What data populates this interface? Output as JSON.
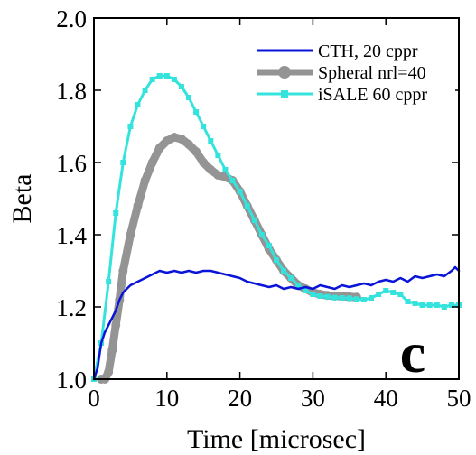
{
  "chart_data": {
    "type": "line",
    "title": "",
    "xlabel": "Time [microsec]",
    "ylabel": "Beta",
    "xlim": [
      0,
      50
    ],
    "ylim": [
      1.0,
      2.0
    ],
    "xticks": [
      "0",
      "10",
      "20",
      "30",
      "40",
      "50"
    ],
    "yticks": [
      "1.0",
      "1.2",
      "1.4",
      "1.6",
      "1.8",
      "2.0"
    ],
    "grid": false,
    "legend_position": "top-right",
    "panel_label": "c",
    "series": [
      {
        "name": "CTH, 20 cppr",
        "color": "#0a14d8",
        "marker": "none",
        "points": [
          [
            0,
            1.0
          ],
          [
            0.5,
            1.03
          ],
          [
            1,
            1.1
          ],
          [
            1.5,
            1.13
          ],
          [
            2,
            1.15
          ],
          [
            2.5,
            1.17
          ],
          [
            3,
            1.19
          ],
          [
            3.5,
            1.22
          ],
          [
            4,
            1.24
          ],
          [
            5,
            1.26
          ],
          [
            6,
            1.27
          ],
          [
            7,
            1.28
          ],
          [
            8,
            1.29
          ],
          [
            9,
            1.3
          ],
          [
            10,
            1.295
          ],
          [
            11,
            1.3
          ],
          [
            12,
            1.295
          ],
          [
            13,
            1.3
          ],
          [
            14,
            1.295
          ],
          [
            15,
            1.3
          ],
          [
            16,
            1.3
          ],
          [
            17,
            1.295
          ],
          [
            18,
            1.29
          ],
          [
            19,
            1.285
          ],
          [
            20,
            1.28
          ],
          [
            21,
            1.27
          ],
          [
            22,
            1.265
          ],
          [
            23,
            1.26
          ],
          [
            24,
            1.255
          ],
          [
            25,
            1.26
          ],
          [
            26,
            1.25
          ],
          [
            27,
            1.255
          ],
          [
            28,
            1.25
          ],
          [
            29,
            1.255
          ],
          [
            30,
            1.25
          ],
          [
            31,
            1.26
          ],
          [
            32,
            1.255
          ],
          [
            33,
            1.25
          ],
          [
            34,
            1.26
          ],
          [
            35,
            1.255
          ],
          [
            36,
            1.26
          ],
          [
            37,
            1.265
          ],
          [
            38,
            1.26
          ],
          [
            39,
            1.27
          ],
          [
            40,
            1.275
          ],
          [
            41,
            1.27
          ],
          [
            42,
            1.28
          ],
          [
            43,
            1.27
          ],
          [
            44,
            1.285
          ],
          [
            45,
            1.28
          ],
          [
            46,
            1.285
          ],
          [
            47,
            1.29
          ],
          [
            48,
            1.285
          ],
          [
            49,
            1.3
          ],
          [
            49.5,
            1.31
          ],
          [
            50,
            1.3
          ]
        ]
      },
      {
        "name": "Spheral nrl=40",
        "color": "#949494",
        "marker": "circle",
        "points": [
          [
            1,
            1.0
          ],
          [
            1.5,
            1.0
          ],
          [
            2,
            1.02
          ],
          [
            2.5,
            1.08
          ],
          [
            3,
            1.15
          ],
          [
            3.5,
            1.22
          ],
          [
            4,
            1.3
          ],
          [
            5,
            1.4
          ],
          [
            6,
            1.48
          ],
          [
            7,
            1.55
          ],
          [
            8,
            1.6
          ],
          [
            9,
            1.64
          ],
          [
            10,
            1.66
          ],
          [
            11,
            1.67
          ],
          [
            12,
            1.665
          ],
          [
            13,
            1.65
          ],
          [
            14,
            1.63
          ],
          [
            15,
            1.6
          ],
          [
            16,
            1.58
          ],
          [
            17,
            1.565
          ],
          [
            18,
            1.56
          ],
          [
            19,
            1.55
          ],
          [
            20,
            1.52
          ],
          [
            21,
            1.48
          ],
          [
            22,
            1.44
          ],
          [
            23,
            1.4
          ],
          [
            24,
            1.36
          ],
          [
            25,
            1.33
          ],
          [
            26,
            1.3
          ],
          [
            27,
            1.28
          ],
          [
            28,
            1.26
          ],
          [
            29,
            1.25
          ],
          [
            30,
            1.24
          ],
          [
            31,
            1.235
          ],
          [
            32,
            1.232
          ],
          [
            33,
            1.23
          ],
          [
            34,
            1.23
          ],
          [
            35,
            1.228
          ],
          [
            36,
            1.227
          ]
        ]
      },
      {
        "name": "iSALE 60 cppr",
        "color": "#34e3dc",
        "marker": "square",
        "points": [
          [
            0,
            1.0
          ],
          [
            1,
            1.1
          ],
          [
            2,
            1.27
          ],
          [
            3,
            1.46
          ],
          [
            4,
            1.6
          ],
          [
            5,
            1.7
          ],
          [
            6,
            1.76
          ],
          [
            7,
            1.8
          ],
          [
            8,
            1.83
          ],
          [
            9,
            1.84
          ],
          [
            10,
            1.84
          ],
          [
            11,
            1.83
          ],
          [
            12,
            1.81
          ],
          [
            13,
            1.78
          ],
          [
            14,
            1.74
          ],
          [
            15,
            1.7
          ],
          [
            16,
            1.66
          ],
          [
            17,
            1.62
          ],
          [
            18,
            1.58
          ],
          [
            19,
            1.55
          ],
          [
            20,
            1.52
          ],
          [
            21,
            1.48
          ],
          [
            22,
            1.44
          ],
          [
            23,
            1.4
          ],
          [
            24,
            1.37
          ],
          [
            25,
            1.33
          ],
          [
            26,
            1.3
          ],
          [
            27,
            1.28
          ],
          [
            28,
            1.26
          ],
          [
            29,
            1.245
          ],
          [
            30,
            1.235
          ],
          [
            31,
            1.23
          ],
          [
            32,
            1.228
          ],
          [
            33,
            1.226
          ],
          [
            34,
            1.225
          ],
          [
            35,
            1.224
          ],
          [
            36,
            1.222
          ],
          [
            37,
            1.22
          ],
          [
            38,
            1.225
          ],
          [
            39,
            1.235
          ],
          [
            40,
            1.245
          ],
          [
            41,
            1.24
          ],
          [
            42,
            1.235
          ],
          [
            43,
            1.215
          ],
          [
            44,
            1.21
          ],
          [
            45,
            1.205
          ],
          [
            46,
            1.205
          ],
          [
            47,
            1.205
          ],
          [
            48,
            1.2
          ],
          [
            49,
            1.205
          ],
          [
            50,
            1.205
          ]
        ]
      }
    ]
  }
}
